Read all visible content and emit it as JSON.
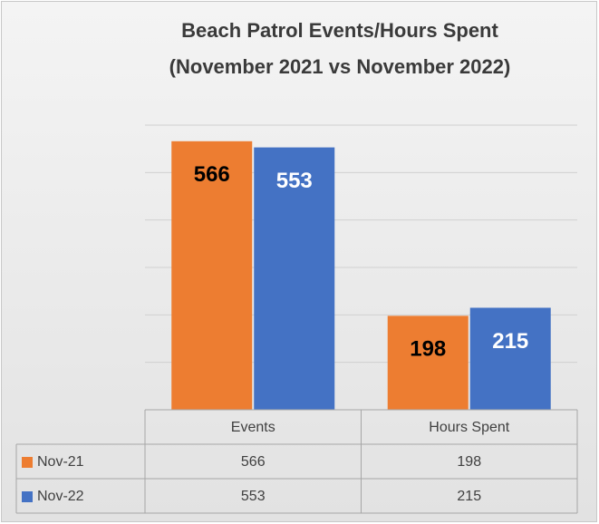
{
  "chart_data": {
    "type": "bar",
    "title": "Beach Patrol Events/Hours Spent",
    "subtitle": "(November 2021 vs November  2022)",
    "categories": [
      "Events",
      "Hours Spent"
    ],
    "series": [
      {
        "name": "Nov-21",
        "color": "#ED7D31",
        "label_color": "#000000",
        "values": [
          566,
          198
        ]
      },
      {
        "name": "Nov-22",
        "color": "#4472C4",
        "label_color": "#ffffff",
        "values": [
          553,
          215
        ]
      }
    ],
    "ylim": [
      0,
      600
    ],
    "yticks": [
      0,
      100,
      200,
      300,
      400,
      500,
      600
    ],
    "grid": true,
    "data_table": true
  }
}
